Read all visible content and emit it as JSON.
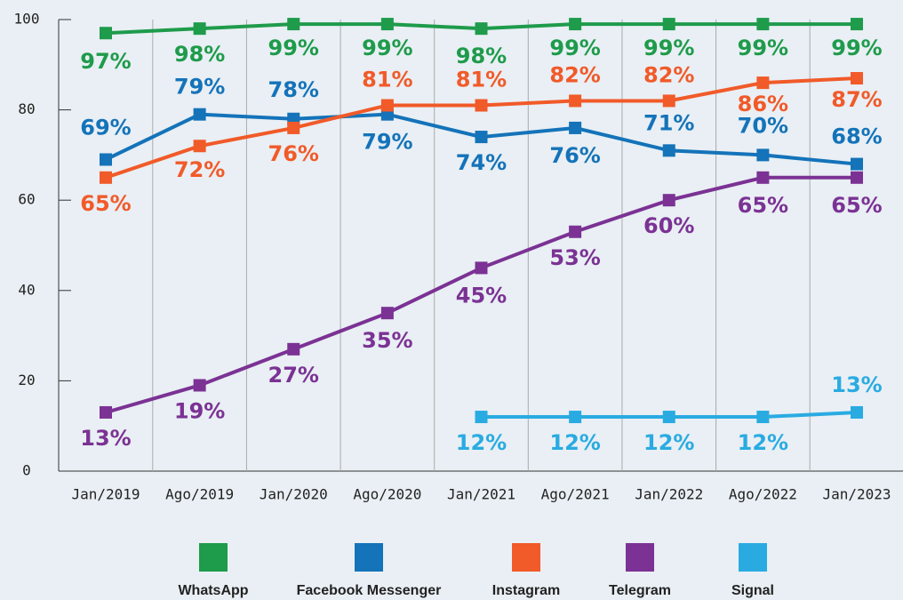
{
  "chart_data": {
    "type": "line",
    "categories": [
      "Jan/2019",
      "Ago/2019",
      "Jan/2020",
      "Ago/2020",
      "Jan/2021",
      "Ago/2021",
      "Jan/2022",
      "Ago/2022",
      "Jan/2023"
    ],
    "series": [
      {
        "name": "WhatsApp",
        "color": "#1e9b4b",
        "values": [
          97,
          98,
          99,
          99,
          98,
          99,
          99,
          99,
          99
        ],
        "value_labels": [
          "97%",
          "98%",
          "99%",
          "99%",
          "98%",
          "99%",
          "99%",
          "99%",
          "99%"
        ]
      },
      {
        "name": "Facebook Messenger",
        "color": "#1473b9",
        "values": [
          69,
          79,
          78,
          79,
          74,
          76,
          71,
          70,
          68
        ],
        "value_labels": [
          "69%",
          "79%",
          "78%",
          "79%",
          "74%",
          "76%",
          "71%",
          "70%",
          "68%"
        ]
      },
      {
        "name": "Instagram",
        "color": "#f15a29",
        "values": [
          65,
          72,
          76,
          81,
          81,
          82,
          82,
          86,
          87
        ],
        "value_labels": [
          "65%",
          "72%",
          "76%",
          "81%",
          "81%",
          "82%",
          "82%",
          "86%",
          "87%"
        ]
      },
      {
        "name": "Telegram",
        "color": "#7b3294",
        "values": [
          13,
          19,
          27,
          35,
          45,
          53,
          60,
          65,
          65
        ],
        "value_labels": [
          "13%",
          "19%",
          "27%",
          "35%",
          "45%",
          "53%",
          "60%",
          "65%",
          "65%"
        ]
      },
      {
        "name": "Signal",
        "color": "#29abe2",
        "values": [
          null,
          null,
          null,
          null,
          12,
          12,
          12,
          12,
          13
        ],
        "value_labels": [
          null,
          null,
          null,
          null,
          "12%",
          "12%",
          "12%",
          "12%",
          "13%"
        ]
      }
    ],
    "ylim": [
      0,
      100
    ],
    "yticks": [
      0,
      20,
      40,
      60,
      80,
      100
    ],
    "legend": "bottom"
  }
}
